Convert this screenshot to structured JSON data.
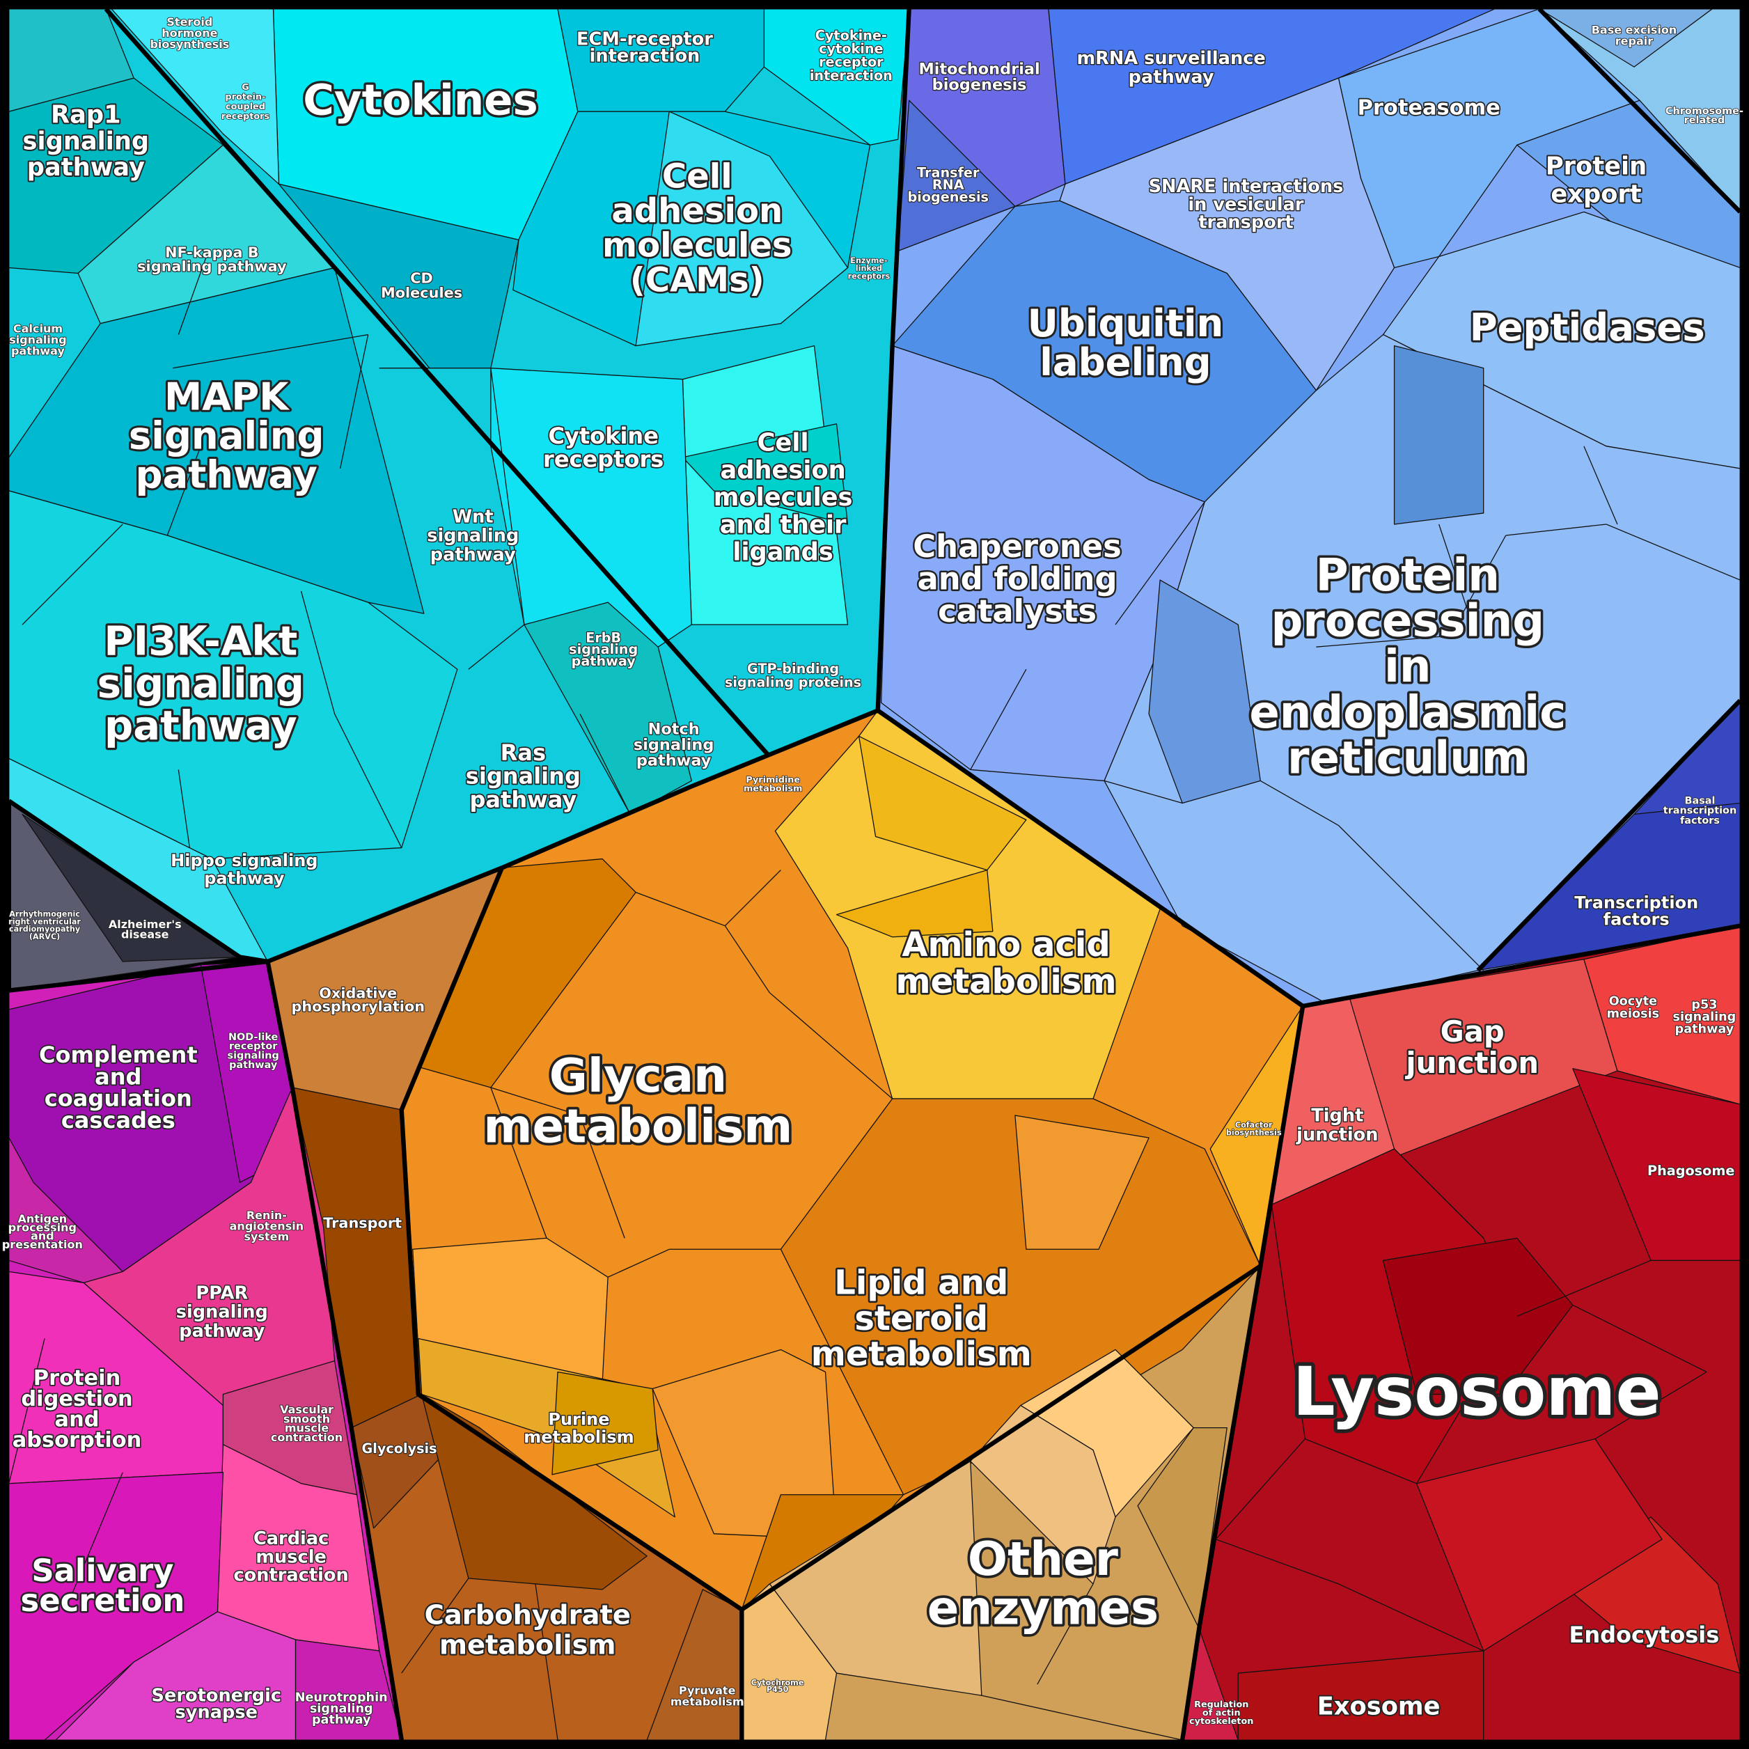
{
  "labels": [
    {
      "lines": [
        "Steroid",
        "hormone",
        "biosynthesis"
      ]
    },
    {
      "lines": [
        "G",
        "protein-",
        "coupled",
        "receptors"
      ]
    },
    {
      "lines": [
        "Cytokines"
      ]
    },
    {
      "lines": [
        "ECM-receptor",
        "interaction"
      ]
    },
    {
      "lines": [
        "Cytokine-",
        "cytokine",
        "receptor",
        "interaction"
      ]
    },
    {
      "lines": [
        "Rap1",
        "signaling",
        "pathway"
      ]
    },
    {
      "lines": [
        "Cell",
        "adhesion",
        "molecules",
        "(CAMs)"
      ]
    },
    {
      "lines": [
        "NF-kappa B",
        "signaling pathway"
      ]
    },
    {
      "lines": [
        "CD",
        "Molecules"
      ]
    },
    {
      "lines": [
        "Enzyme-",
        "linked",
        "receptors"
      ]
    },
    {
      "lines": [
        "Calcium",
        "signaling",
        "pathway"
      ]
    },
    {
      "lines": [
        "MAPK",
        "signaling",
        "pathway"
      ]
    },
    {
      "lines": [
        "Cytokine",
        "receptors"
      ]
    },
    {
      "lines": [
        "Cell",
        "adhesion",
        "molecules",
        "and their",
        "ligands"
      ]
    },
    {
      "lines": [
        "Wnt",
        "signaling",
        "pathway"
      ]
    },
    {
      "lines": [
        "ErbB",
        "signaling",
        "pathway"
      ]
    },
    {
      "lines": [
        "PI3K-Akt",
        "signaling",
        "pathway"
      ]
    },
    {
      "lines": [
        "GTP-binding",
        "signaling proteins"
      ]
    },
    {
      "lines": [
        "Notch",
        "signaling",
        "pathway"
      ]
    },
    {
      "lines": [
        "Ras",
        "signaling",
        "pathway"
      ]
    },
    {
      "lines": [
        "Hippo signaling",
        "pathway"
      ]
    },
    {
      "lines": [
        "Arrhythmogenic",
        "right ventricular",
        "cardiomyopathy",
        "(ARVC)"
      ]
    },
    {
      "lines": [
        "Alzheimer's",
        "disease"
      ]
    },
    {
      "lines": [
        "Mitochondrial",
        "biogenesis"
      ]
    },
    {
      "lines": [
        "mRNA surveillance",
        "pathway"
      ]
    },
    {
      "lines": [
        "Transfer",
        "RNA",
        "biogenesis"
      ]
    },
    {
      "lines": [
        "Base excision",
        "repair"
      ]
    },
    {
      "lines": [
        "Chromosome-",
        "related"
      ]
    },
    {
      "lines": [
        "Proteasome"
      ]
    },
    {
      "lines": [
        "Protein",
        "export"
      ]
    },
    {
      "lines": [
        "SNARE interactions",
        "in vesicular",
        "transport"
      ]
    },
    {
      "lines": [
        "Ubiquitin",
        "labeling"
      ]
    },
    {
      "lines": [
        "Peptidases"
      ]
    },
    {
      "lines": [
        "Chaperones",
        "and folding",
        "catalysts"
      ]
    },
    {
      "lines": [
        "Protein",
        "processing",
        "in",
        "endoplasmic",
        "reticulum"
      ]
    },
    {
      "lines": [
        "Basal",
        "transcription",
        "factors"
      ]
    },
    {
      "lines": [
        "Transcription",
        "factors"
      ]
    },
    {
      "lines": [
        "Pyrimidine",
        "metabolism"
      ]
    },
    {
      "lines": [
        "Amino acid",
        "metabolism"
      ]
    },
    {
      "lines": [
        "Glycan",
        "metabolism"
      ]
    },
    {
      "lines": [
        "Cofactor",
        "biosynthesis"
      ]
    },
    {
      "lines": [
        "Lipid and",
        "steroid",
        "metabolism"
      ]
    },
    {
      "lines": [
        "Purine",
        "metabolism"
      ]
    },
    {
      "lines": [
        "Oxidative",
        "phosphorylation"
      ]
    },
    {
      "lines": [
        "Transport"
      ]
    },
    {
      "lines": [
        "Glycolysis"
      ]
    },
    {
      "lines": [
        "Carbohydrate",
        "metabolism"
      ]
    },
    {
      "lines": [
        "Pyruvate",
        "metabolism"
      ]
    },
    {
      "lines": [
        "Cytochrome",
        "P450"
      ]
    },
    {
      "lines": [
        "Other",
        "enzymes"
      ]
    },
    {
      "lines": [
        "NOD-like",
        "receptor",
        "signaling",
        "pathway"
      ]
    },
    {
      "lines": [
        "Complement",
        "and",
        "coagulation",
        "cascades"
      ]
    },
    {
      "lines": [
        "Antigen",
        "processing",
        "and",
        "presentation"
      ]
    },
    {
      "lines": [
        "Renin-",
        "angiotensin",
        "system"
      ]
    },
    {
      "lines": [
        "PPAR",
        "signaling",
        "pathway"
      ]
    },
    {
      "lines": [
        "Protein",
        "digestion",
        "and",
        "absorption"
      ]
    },
    {
      "lines": [
        "Vascular",
        "smooth",
        "muscle",
        "contraction"
      ]
    },
    {
      "lines": [
        "Cardiac",
        "muscle",
        "contraction"
      ]
    },
    {
      "lines": [
        "Salivary",
        "secretion"
      ]
    },
    {
      "lines": [
        "Serotonergic",
        "synapse"
      ]
    },
    {
      "lines": [
        "Neurotrophin",
        "signaling",
        "pathway"
      ]
    },
    {
      "lines": [
        "Oocyte",
        "meiosis"
      ]
    },
    {
      "lines": [
        "p53",
        "signaling",
        "pathway"
      ]
    },
    {
      "lines": [
        "Gap",
        "junction"
      ]
    },
    {
      "lines": [
        "Tight",
        "junction"
      ]
    },
    {
      "lines": [
        "Phagosome"
      ]
    },
    {
      "lines": [
        "Lysosome"
      ]
    },
    {
      "lines": [
        "Endocytosis"
      ]
    },
    {
      "lines": [
        "Regulation",
        "of actin",
        "cytoskeleton"
      ]
    },
    {
      "lines": [
        "Exosome"
      ]
    }
  ]
}
